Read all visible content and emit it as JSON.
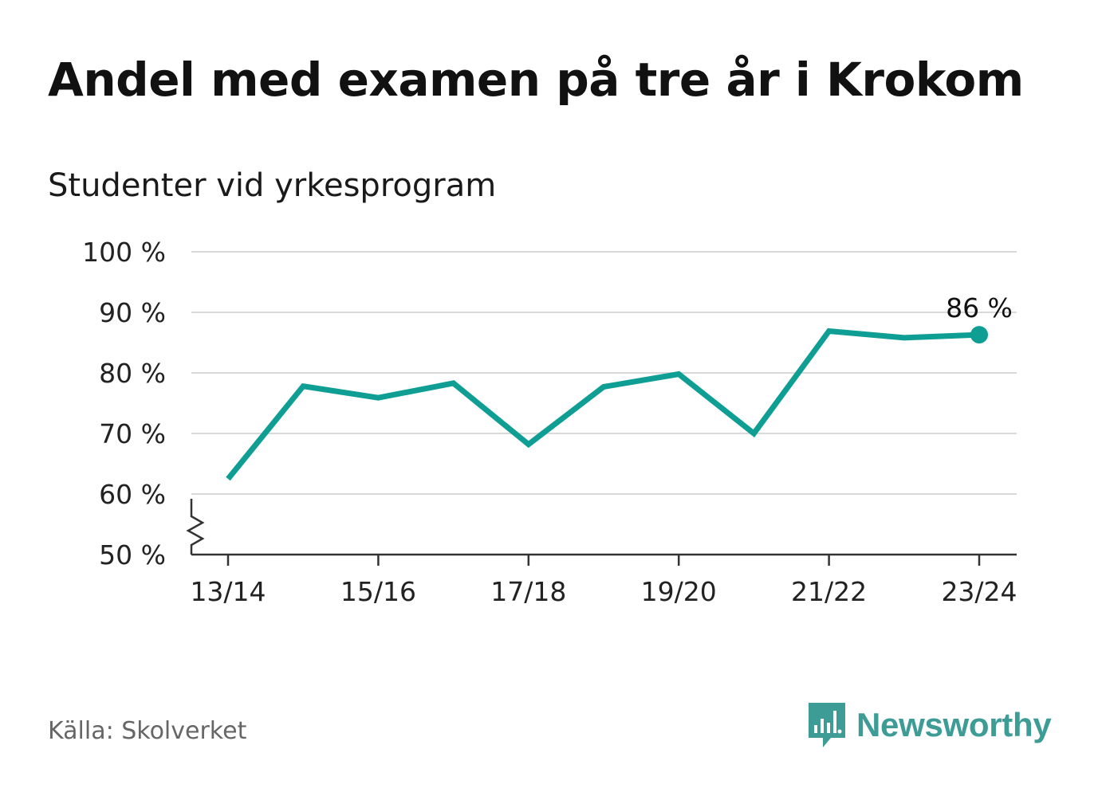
{
  "title": "Andel med examen på tre år i Krokom",
  "subtitle": "Studenter vid yrkesprogram",
  "source": "Källa: Skolverket",
  "brand": "Newsworthy",
  "colors": {
    "line": "#0f9e94",
    "grid": "#d9d9d9",
    "axis": "#333333",
    "brand": "#3d9c95"
  },
  "chart_data": {
    "type": "line",
    "categories": [
      "13/14",
      "14/15",
      "15/16",
      "16/17",
      "17/18",
      "18/19",
      "19/20",
      "20/21",
      "21/22",
      "22/23",
      "23/24"
    ],
    "x_tick_labels": [
      "13/14",
      "15/16",
      "17/18",
      "19/20",
      "21/22",
      "23/24"
    ],
    "series": [
      {
        "values": [
          62.5,
          77.8,
          75.9,
          78.3,
          68.2,
          77.7,
          79.8,
          70.0,
          86.9,
          85.8,
          86.3
        ]
      }
    ],
    "y_ticks": [
      50,
      60,
      70,
      80,
      90,
      100
    ],
    "y_tick_labels": [
      "50 %",
      "60 %",
      "70 %",
      "80 %",
      "90 %",
      "100 %"
    ],
    "ylim": [
      50,
      100
    ],
    "y_axis_break": true,
    "grid": true,
    "end_label": "86 %",
    "xlabel": "",
    "ylabel": ""
  }
}
